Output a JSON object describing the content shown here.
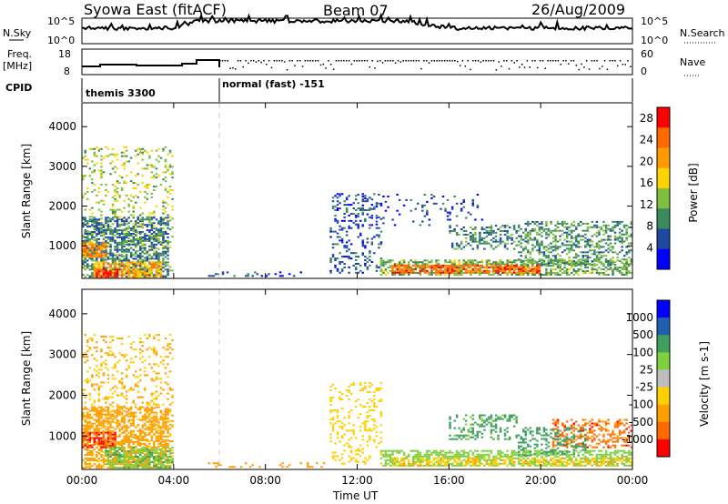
{
  "header": {
    "station": "Syowa East (fitACF)",
    "beam": "Beam 07",
    "date": "26/Aug/2009"
  },
  "labels": {
    "nsky": "N.Sky",
    "nsearch": "N.Search",
    "freq_line1": "Freq.",
    "freq_line2": "[MHz]",
    "nave": "Nave",
    "cpid": "CPID",
    "cpid_1": "themis 3300",
    "cpid_2": "normal (fast) -151"
  },
  "noise_axis": {
    "left_ticks": [
      "10^5",
      "10^0"
    ],
    "right_ticks": [
      "10^5",
      "10^0"
    ]
  },
  "freq_axis": {
    "left_ticks": [
      "18",
      "8"
    ],
    "right_ticks": [
      "60",
      "0"
    ]
  },
  "colors": {
    "power_scale": [
      "#0000ff",
      "#1f48a0",
      "#3a8a5e",
      "#7fbf3f",
      "#ffd200",
      "#ff9b00",
      "#ff6a00",
      "#ff0000"
    ],
    "velocity_scale": [
      "#ff0000",
      "#ff6a00",
      "#ff9f00",
      "#ffd000",
      "#bebebe",
      "#7fcf3f",
      "#3f9f5f",
      "#1f5faf",
      "#0000ff"
    ]
  },
  "chart_data": [
    {
      "type": "heatmap",
      "name": "power",
      "xlabel": "Time UT",
      "ylabel": "Slant Range [km]",
      "colorbar_label": "Power [dB]",
      "x_ticks": [
        "00:00",
        "04:00",
        "08:00",
        "12:00",
        "16:00",
        "20:00",
        "00:00"
      ],
      "y_ticks": [
        1000,
        2000,
        3000,
        4000
      ],
      "ylim": [
        180,
        4600
      ],
      "xlim_hours": [
        0,
        24
      ],
      "colorbar_ticks": [
        4,
        8,
        12,
        16,
        20,
        24,
        28
      ],
      "colorbar_range": [
        0,
        30
      ],
      "regions": [
        {
          "t": [
            0.0,
            4.0
          ],
          "r": [
            220,
            3500
          ],
          "value": 14,
          "density": 0.18
        },
        {
          "t": [
            0.0,
            3.8
          ],
          "r": [
            200,
            1700
          ],
          "value": 8,
          "density": 0.55
        },
        {
          "t": [
            0.0,
            1.0
          ],
          "r": [
            700,
            1100
          ],
          "value": 22,
          "density": 0.6
        },
        {
          "t": [
            0.5,
            3.5
          ],
          "r": [
            200,
            600
          ],
          "value": 20,
          "density": 0.7
        },
        {
          "t": [
            0.6,
            1.6
          ],
          "r": [
            200,
            400
          ],
          "value": 28,
          "density": 0.8
        },
        {
          "t": [
            5.5,
            10.5
          ],
          "r": [
            220,
            320
          ],
          "value": 5,
          "density": 0.15
        },
        {
          "t": [
            10.8,
            13.0
          ],
          "r": [
            300,
            2300
          ],
          "value": 6,
          "density": 0.22
        },
        {
          "t": [
            13.0,
            24.0
          ],
          "r": [
            250,
            650
          ],
          "value": 12,
          "density": 0.55
        },
        {
          "t": [
            13.5,
            20.0
          ],
          "r": [
            300,
            500
          ],
          "value": 24,
          "density": 0.75
        },
        {
          "t": [
            16.0,
            19.0
          ],
          "r": [
            900,
            1500
          ],
          "value": 9,
          "density": 0.35
        },
        {
          "t": [
            19.0,
            24.0
          ],
          "r": [
            500,
            1600
          ],
          "value": 10,
          "density": 0.4
        },
        {
          "t": [
            12.0,
            17.5
          ],
          "r": [
            1500,
            2300
          ],
          "value": 5,
          "density": 0.08
        }
      ]
    },
    {
      "type": "heatmap",
      "name": "velocity",
      "xlabel": "Time UT",
      "ylabel": "Slant Range [km]",
      "colorbar_label": "Velocity [m s-1]",
      "x_ticks": [
        "00:00",
        "04:00",
        "08:00",
        "12:00",
        "16:00",
        "20:00",
        "00:00"
      ],
      "y_ticks": [
        1000,
        2000,
        3000,
        4000
      ],
      "ylim": [
        180,
        4600
      ],
      "xlim_hours": [
        0,
        24
      ],
      "colorbar_ticks": [
        1000,
        500,
        100,
        25,
        -25,
        -100,
        -500,
        -1000
      ],
      "regions": [
        {
          "t": [
            0.0,
            4.0
          ],
          "r": [
            220,
            3500
          ],
          "value": -100,
          "density": 0.18
        },
        {
          "t": [
            0.0,
            3.8
          ],
          "r": [
            200,
            1700
          ],
          "value": -300,
          "density": 0.55
        },
        {
          "t": [
            0.0,
            1.5
          ],
          "r": [
            700,
            1100
          ],
          "value": -1000,
          "density": 0.6
        },
        {
          "t": [
            1.0,
            4.0
          ],
          "r": [
            200,
            700
          ],
          "value": 80,
          "density": 0.6
        },
        {
          "t": [
            5.5,
            10.5
          ],
          "r": [
            220,
            320
          ],
          "value": -200,
          "density": 0.15
        },
        {
          "t": [
            10.8,
            13.0
          ],
          "r": [
            300,
            2300
          ],
          "value": -60,
          "density": 0.2
        },
        {
          "t": [
            13.0,
            24.0
          ],
          "r": [
            250,
            650
          ],
          "value": 50,
          "density": 0.55
        },
        {
          "t": [
            13.5,
            24.0
          ],
          "r": [
            250,
            450
          ],
          "value": -80,
          "density": 0.45
        },
        {
          "t": [
            16.0,
            19.0
          ],
          "r": [
            900,
            1500
          ],
          "value": 150,
          "density": 0.35
        },
        {
          "t": [
            20.5,
            24.0
          ],
          "r": [
            700,
            1400
          ],
          "value": -700,
          "density": 0.4
        },
        {
          "t": [
            19.0,
            22.0
          ],
          "r": [
            500,
            1200
          ],
          "value": 300,
          "density": 0.3
        }
      ]
    }
  ]
}
